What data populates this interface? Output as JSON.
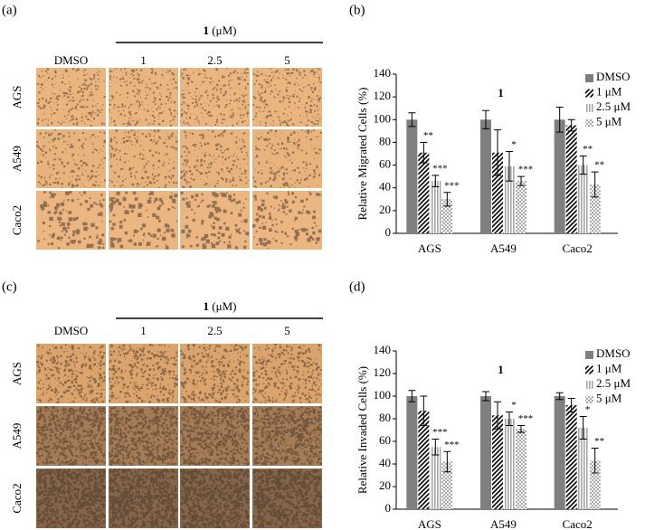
{
  "panel_labels": [
    "(a)",
    "(b)",
    "(c)",
    "(d)"
  ],
  "image_panels": [
    {
      "treatment": "1",
      "unit": "(μM)",
      "columns": [
        "DMSO",
        "1",
        "2.5",
        "5"
      ],
      "rows": [
        "AGS",
        "A549",
        "Caco2"
      ]
    },
    {
      "treatment": "1",
      "unit": "(μM)",
      "columns": [
        "DMSO",
        "1",
        "2.5",
        "5"
      ],
      "rows": [
        "AGS",
        "A549",
        "Caco2"
      ]
    }
  ],
  "chart_data": [
    {
      "type": "bar",
      "title": "1",
      "y_label": "Relative Migrated Cells (%)",
      "categories": [
        "AGS",
        "A549",
        "Caco2"
      ],
      "ylim": [
        0,
        140
      ],
      "yticks": [
        0,
        20,
        40,
        60,
        80,
        100,
        120,
        140
      ],
      "legend": "upper right",
      "series": [
        {
          "name": "DMSO",
          "color": "#7f7f7f",
          "pattern": "solid",
          "values": [
            100,
            100,
            100
          ],
          "errors": [
            6,
            8,
            11
          ],
          "annotations": [
            null,
            null,
            null
          ]
        },
        {
          "name": "1 μM",
          "color": "#000000",
          "pattern": "diagonal",
          "values": [
            71,
            71,
            95
          ],
          "errors": [
            9,
            20,
            5
          ],
          "annotations": [
            "**",
            null,
            null
          ]
        },
        {
          "name": "2.5 μM",
          "color": "#a6a6a6",
          "pattern": "vertical",
          "values": [
            46,
            59,
            60
          ],
          "errors": [
            5,
            13,
            8
          ],
          "annotations": [
            "***",
            "*",
            "**"
          ]
        },
        {
          "name": "5 μM",
          "color": "#404040",
          "pattern": "dots",
          "values": [
            30,
            46,
            43
          ],
          "errors": [
            6,
            4,
            11
          ],
          "annotations": [
            "***",
            "***",
            "**"
          ]
        }
      ]
    },
    {
      "type": "bar",
      "title": "1",
      "y_label": "Relative Invaded Cells (%)",
      "categories": [
        "AGS",
        "A549",
        "Caco2"
      ],
      "ylim": [
        0,
        140
      ],
      "yticks": [
        0,
        20,
        40,
        60,
        80,
        100,
        120,
        140
      ],
      "legend": "upper right",
      "series": [
        {
          "name": "DMSO",
          "color": "#7f7f7f",
          "pattern": "solid",
          "values": [
            100,
            100,
            100
          ],
          "errors": [
            5,
            4,
            3
          ],
          "annotations": [
            null,
            null,
            null
          ]
        },
        {
          "name": "1 μM",
          "color": "#000000",
          "pattern": "diagonal",
          "values": [
            87,
            83,
            92
          ],
          "errors": [
            13,
            12,
            6
          ],
          "annotations": [
            null,
            null,
            null
          ]
        },
        {
          "name": "2.5 μM",
          "color": "#a6a6a6",
          "pattern": "vertical",
          "values": [
            55,
            80,
            72
          ],
          "errors": [
            7,
            6,
            10
          ],
          "annotations": [
            "***",
            "*",
            "*"
          ]
        },
        {
          "name": "5 μM",
          "color": "#404040",
          "pattern": "dots",
          "values": [
            42,
            71,
            43
          ],
          "errors": [
            9,
            3,
            11
          ],
          "annotations": [
            "***",
            "***",
            "**"
          ]
        }
      ]
    }
  ]
}
